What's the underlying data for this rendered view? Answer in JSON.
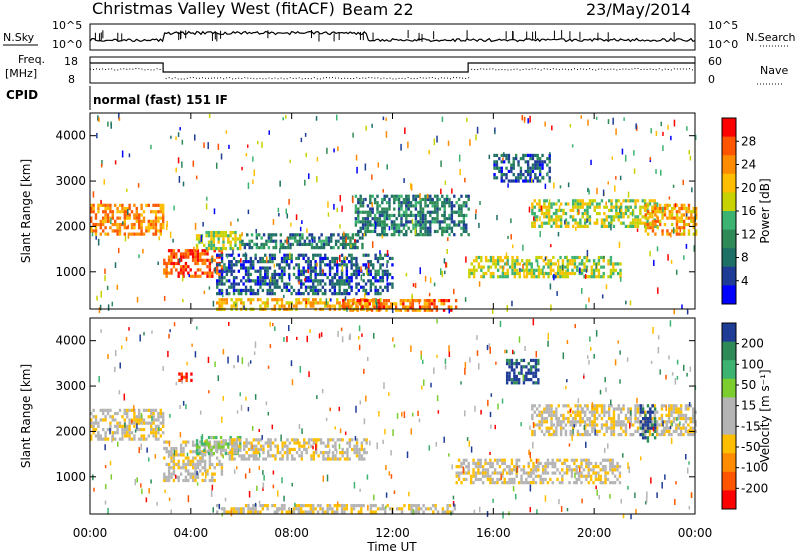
{
  "header": {
    "station": "Christmas Valley West (fitACF)",
    "beam": "Beam 22",
    "date": "23/May/2014"
  },
  "noise_panel": {
    "left_label": "N.Sky",
    "right_label": "N.Search",
    "left_ticks": [
      "10^5",
      "10^0"
    ],
    "right_ticks": [
      "10^5",
      "10^0"
    ]
  },
  "freq_panel": {
    "left_label_1": "Freq.",
    "left_label_2": "[MHz]",
    "right_label": "Nave",
    "left_ticks": [
      "18",
      "8"
    ],
    "right_ticks": [
      "60",
      "0"
    ]
  },
  "cpid": {
    "label": "CPID",
    "mode": "normal (fast) 151 IF"
  },
  "x_axis": {
    "label": "Time UT",
    "ticks": [
      "00:00",
      "04:00",
      "08:00",
      "12:00",
      "16:00",
      "20:00",
      "00:00"
    ]
  },
  "chart_data": [
    {
      "type": "heatmap",
      "name": "power",
      "ylabel": "Slant Range [km]",
      "ylim": [
        180,
        4500
      ],
      "yticks": [
        1000,
        2000,
        3000,
        4000
      ],
      "xlim_hours": [
        0,
        24
      ],
      "colorbar": {
        "label": "Power [dB]",
        "ticks": [
          "28",
          "24",
          "20",
          "16",
          "12",
          "8",
          "4"
        ],
        "colors": [
          "#ff0000",
          "#ff5500",
          "#ff8c00",
          "#ffbf00",
          "#c8d200",
          "#3cb371",
          "#2e8b57",
          "#1e6f66",
          "#1e3c96",
          "#0000ff"
        ]
      },
      "regions": [
        {
          "t": [
            0.0,
            2.9
          ],
          "r": [
            1800,
            2500
          ],
          "level": 0.75
        },
        {
          "t": [
            2.9,
            5.2
          ],
          "r": [
            900,
            1500
          ],
          "level": 0.85
        },
        {
          "t": [
            4.2,
            6.0
          ],
          "r": [
            1500,
            1900
          ],
          "level": 0.55
        },
        {
          "t": [
            6.0,
            10.8
          ],
          "r": [
            1500,
            1850
          ],
          "level": 0.3
        },
        {
          "t": [
            5.0,
            11.5
          ],
          "r": [
            200,
            420
          ],
          "level": 0.65
        },
        {
          "t": [
            10.0,
            14.5
          ],
          "r": [
            180,
            400
          ],
          "level": 0.8
        },
        {
          "t": [
            10.5,
            15.0
          ],
          "r": [
            1800,
            2700
          ],
          "level": 0.3
        },
        {
          "t": [
            15.0,
            21.0
          ],
          "r": [
            900,
            1350
          ],
          "level": 0.55
        },
        {
          "t": [
            17.5,
            22.5
          ],
          "r": [
            2000,
            2600
          ],
          "level": 0.55
        },
        {
          "t": [
            22.0,
            24.0
          ],
          "r": [
            1800,
            2500
          ],
          "level": 0.7
        },
        {
          "t": [
            16.0,
            18.2
          ],
          "r": [
            3000,
            3600
          ],
          "level": 0.2
        },
        {
          "t": [
            5.0,
            12.0
          ],
          "r": [
            500,
            1400
          ],
          "level": 0.2
        }
      ]
    },
    {
      "type": "heatmap",
      "name": "velocity",
      "ylabel": "Slant Range [km]",
      "ylim": [
        180,
        4500
      ],
      "yticks": [
        1000,
        2000,
        3000,
        4000
      ],
      "xlim_hours": [
        0,
        24
      ],
      "colorbar": {
        "label": "Velocity [m s⁻¹]",
        "ticks": [
          "200",
          "100",
          "50",
          "15",
          "-15",
          "-50",
          "-100",
          "-200"
        ],
        "colors": [
          "#1e3c96",
          "#2e8b57",
          "#3cb371",
          "#7ccd2e",
          "#b4b4b4",
          "#b4b4b4",
          "#ffbf00",
          "#ff8c00",
          "#ff5500",
          "#ff0000"
        ]
      },
      "regions": [
        {
          "t": [
            0.0,
            2.9
          ],
          "r": [
            1800,
            2500
          ],
          "level": 0.45
        },
        {
          "t": [
            2.9,
            5.2
          ],
          "r": [
            900,
            1800
          ],
          "level": 0.45
        },
        {
          "t": [
            4.2,
            6.0
          ],
          "r": [
            1500,
            1900
          ],
          "level": 0.65
        },
        {
          "t": [
            5.5,
            11.0
          ],
          "r": [
            1400,
            1850
          ],
          "level": 0.45
        },
        {
          "t": [
            5.0,
            14.5
          ],
          "r": [
            200,
            400
          ],
          "level": 0.45
        },
        {
          "t": [
            14.5,
            21.0
          ],
          "r": [
            900,
            1400
          ],
          "level": 0.45
        },
        {
          "t": [
            17.5,
            24.0
          ],
          "r": [
            1900,
            2600
          ],
          "level": 0.45
        },
        {
          "t": [
            16.5,
            17.8
          ],
          "r": [
            3100,
            3600
          ],
          "level": 0.97
        },
        {
          "t": [
            21.8,
            22.4
          ],
          "r": [
            1800,
            2600
          ],
          "level": 0.95
        },
        {
          "t": [
            3.5,
            4.0
          ],
          "r": [
            3100,
            3300
          ],
          "level": 0.05
        }
      ]
    }
  ]
}
